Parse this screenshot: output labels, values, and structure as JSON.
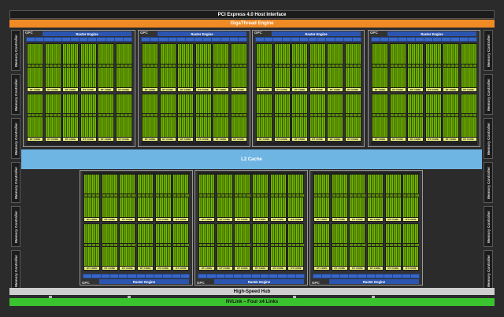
{
  "header": {
    "pcie_label": "PCI Express 4.0 Host Interface",
    "gigathread_label": "GigaThread Engine"
  },
  "memory_controller_label": "Memory Controller",
  "l2_label": "L2 Cache",
  "high_speed_hub_label": "High-Speed Hub",
  "nvlink_label": "NVLink – Four x4 Links",
  "gpc_label": "GPC",
  "raster_engine_label": "Raster Engine",
  "rt_core_label": "RT CORE",
  "colors": {
    "gigathread": "#f08a24",
    "l2": "#6fb5e3",
    "nvlink": "#3ac32e",
    "cuda_core": "#76b900",
    "rt_core": "#e7f07a",
    "raster_engine": "#2c55b0"
  }
}
